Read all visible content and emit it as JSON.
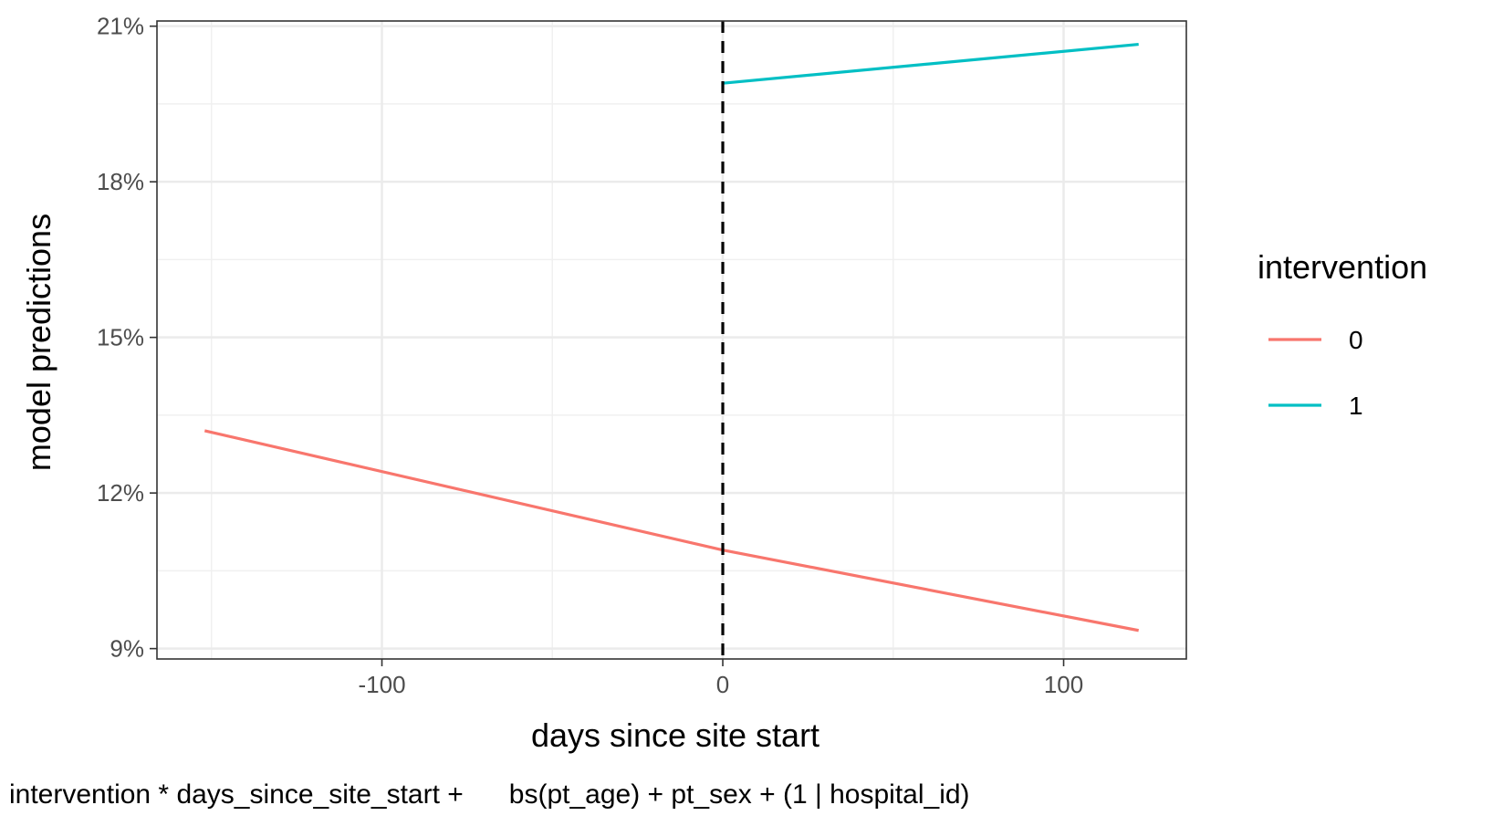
{
  "chart_data": {
    "type": "line",
    "title": "",
    "xlabel": "days since site start",
    "ylabel": "model predictions",
    "caption": "intervention * days_since_site_start +      bs(pt_age) + pt_sex + (1 | hospital_id)",
    "xlim": [
      -166,
      136
    ],
    "ylim": [
      8.8,
      21.1
    ],
    "x_ticks": [
      -100,
      0,
      100
    ],
    "x_tick_labels": [
      "-100",
      "0",
      "100"
    ],
    "y_ticks": [
      9,
      12,
      15,
      18,
      21
    ],
    "y_tick_labels": [
      "9%",
      "12%",
      "15%",
      "18%",
      "21%"
    ],
    "grid": true,
    "reference_line": {
      "x": 0,
      "style": "dashed",
      "color": "#000000"
    },
    "legend": {
      "title": "intervention",
      "position": "right"
    },
    "series": [
      {
        "name": "0",
        "color": "#F8766D",
        "x": [
          -152,
          0,
          122
        ],
        "y": [
          13.2,
          10.9,
          9.35
        ]
      },
      {
        "name": "1",
        "color": "#00BFC4",
        "x": [
          0,
          122
        ],
        "y": [
          19.9,
          20.65
        ]
      }
    ]
  }
}
